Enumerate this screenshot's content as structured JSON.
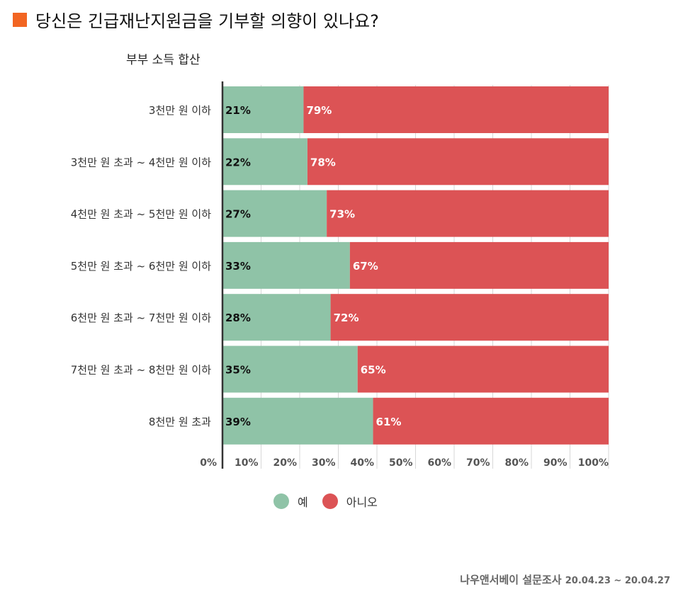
{
  "title": "당신은 긴급재난지원금을 기부할 의향이 있나요?",
  "subtitle": "부부 소득 합산",
  "source": {
    "name": "나우앤서베이 설문조사",
    "dates": "20.04.23 ~ 20.04.27"
  },
  "colors": {
    "accent": "#f26522",
    "yes": "#8fc3a7",
    "no": "#dc5355"
  },
  "chart_data": {
    "type": "bar",
    "stacked": true,
    "orientation": "horizontal",
    "categories": [
      "3천만 원 이하",
      "3천만 원 초과 ~ 4천만 원 이하",
      "4천만 원 초과 ~ 5천만 원 이하",
      "5천만 원 초과 ~ 6천만 원 이하",
      "6천만 원 초과 ~ 7천만 원 이하",
      "7천만 원 초과 ~ 8천만 원 이하",
      "8천만 원 초과"
    ],
    "series": [
      {
        "name": "예",
        "values": [
          21,
          22,
          27,
          33,
          28,
          35,
          39
        ],
        "labels": [
          "21%",
          "22%",
          "27%",
          "33%",
          "28%",
          "35%",
          "39%"
        ]
      },
      {
        "name": "아니오",
        "values": [
          79,
          78,
          73,
          67,
          72,
          65,
          61
        ],
        "labels": [
          "79%",
          "78%",
          "73%",
          "67%",
          "72%",
          "65%",
          "61%"
        ]
      }
    ],
    "xlim": [
      0,
      100
    ],
    "xticks": [
      "0%",
      "10%",
      "20%",
      "30%",
      "40%",
      "50%",
      "60%",
      "70%",
      "80%",
      "90%",
      "100%"
    ],
    "grid": true,
    "legend": "bottom"
  }
}
